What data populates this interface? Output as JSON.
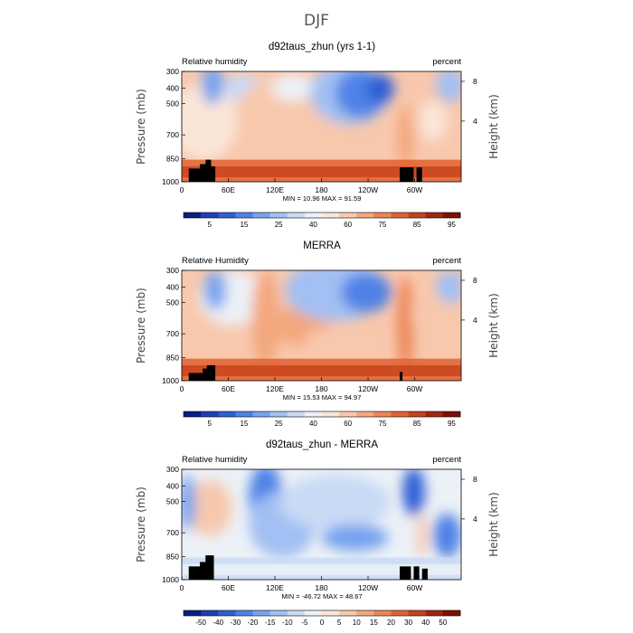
{
  "figure_title": "DJF",
  "chart_data": [
    {
      "type": "heatmap",
      "id": "model",
      "title": "d92taus_zhun (yrs 1-1)",
      "left_label": "Relative humidity",
      "right_label": "percent",
      "ylabel": "Pressure (mb)",
      "y2label": "Height (km)",
      "xticks": [
        "0",
        "60E",
        "120E",
        "180",
        "120W",
        "60W"
      ],
      "yticks": [
        "300",
        "400",
        "500",
        "700",
        "850",
        "1000"
      ],
      "y2ticks": [
        "8",
        "4"
      ],
      "min_label": "MIN =",
      "min_value": "10.96",
      "max_label": "MAX =",
      "max_value": "91.59",
      "colorbar_labels": [
        "5",
        "15",
        "25",
        "40",
        "60",
        "75",
        "85",
        "95"
      ]
    },
    {
      "type": "heatmap",
      "id": "merra",
      "title": "MERRA",
      "left_label": "Relative Humidity",
      "right_label": "percent",
      "ylabel": "Pressure (mb)",
      "y2label": "Height (km)",
      "xticks": [
        "0",
        "60E",
        "120E",
        "180",
        "120W",
        "60W"
      ],
      "yticks": [
        "300",
        "400",
        "500",
        "700",
        "850",
        "1000"
      ],
      "y2ticks": [
        "8",
        "4"
      ],
      "min_label": "MIN =",
      "min_value": "15.53",
      "max_label": "MAX =",
      "max_value": "94.97",
      "colorbar_labels": [
        "5",
        "15",
        "25",
        "40",
        "60",
        "75",
        "85",
        "95"
      ]
    },
    {
      "type": "heatmap",
      "id": "diff",
      "title": "d92taus_zhun - MERRA",
      "left_label": "Relative humidity",
      "right_label": "percent",
      "ylabel": "Pressure (mb)",
      "y2label": "Height (km)",
      "xticks": [
        "0",
        "60E",
        "120E",
        "180",
        "120W",
        "60W"
      ],
      "yticks": [
        "300",
        "400",
        "500",
        "700",
        "850",
        "1000"
      ],
      "y2ticks": [
        "8",
        "4"
      ],
      "min_label": "MIN =",
      "min_value": "-46.72",
      "max_label": "MAX =",
      "max_value": "48.67",
      "colorbar_labels": [
        "-50",
        "-40",
        "-30",
        "-20",
        "-15",
        "-10",
        "-5",
        "0",
        "5",
        "10",
        "15",
        "20",
        "30",
        "40",
        "50"
      ]
    }
  ],
  "colors": {
    "scale": [
      "#0a1e86",
      "#1f3fb8",
      "#2d5fd6",
      "#4f82e6",
      "#77a3ef",
      "#a2c0f3",
      "#c9daf5",
      "#ecf1f7",
      "#fae6d9",
      "#f8c8ad",
      "#f3a77e",
      "#ec8654",
      "#e0622f",
      "#c7421c",
      "#a4250f",
      "#7c1105"
    ],
    "terrain": "#000000"
  }
}
